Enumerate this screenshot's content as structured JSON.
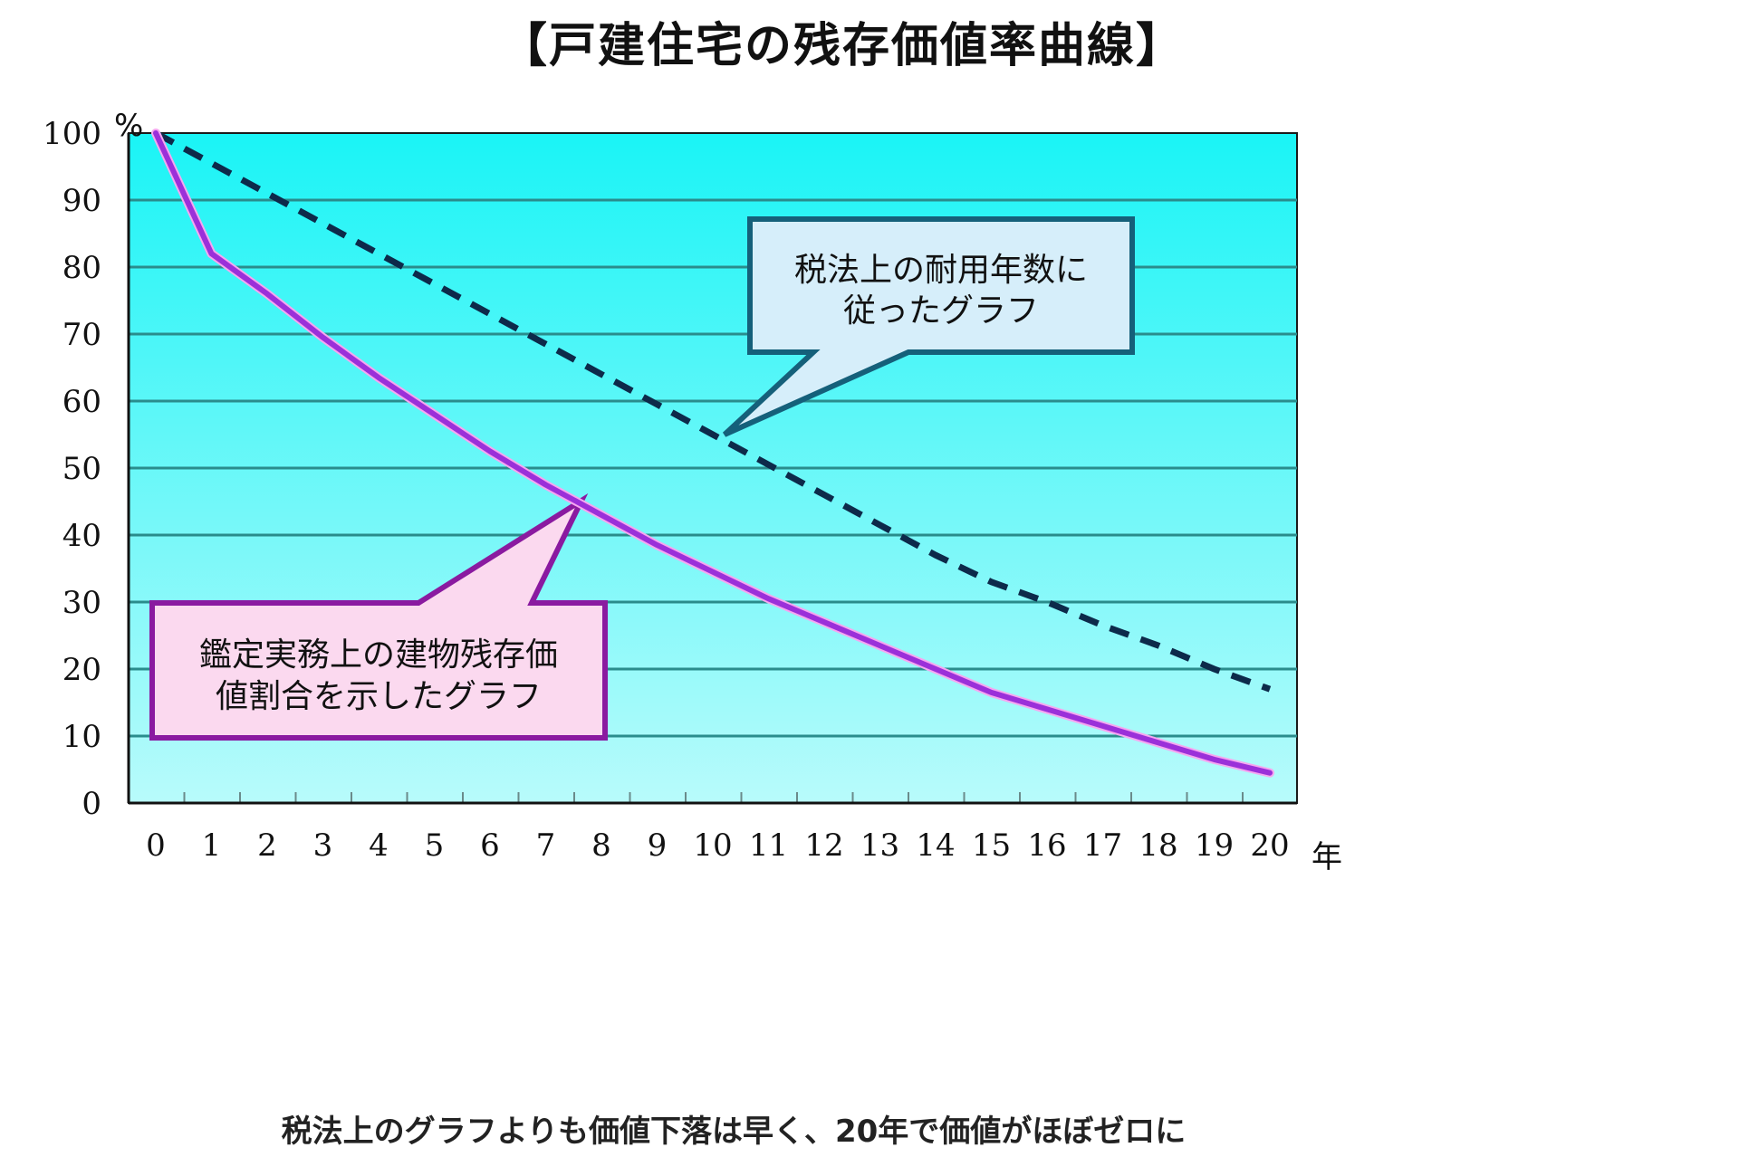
{
  "title": "【戸建住宅の残存価値率曲線】",
  "footnote": "税法上のグラフよりも価値下落は早く、20年で価値がほぼゼロに",
  "axes": {
    "y_unit": "%",
    "x_unit": "年",
    "y_ticks": [
      "0",
      "10",
      "20",
      "30",
      "40",
      "50",
      "60",
      "70",
      "80",
      "90",
      "100"
    ],
    "x_ticks": [
      "0",
      "1",
      "2",
      "3",
      "4",
      "5",
      "6",
      "7",
      "8",
      "9",
      "10",
      "11",
      "12",
      "13",
      "14",
      "15",
      "16",
      "17",
      "18",
      "19",
      "20"
    ]
  },
  "callouts": {
    "tax": {
      "line1": "税法上の耐用年数に",
      "line2": "従ったグラフ"
    },
    "appraisal": {
      "line1": "鑑定実務上の建物残存価",
      "line2": "値割合を示したグラフ"
    }
  },
  "colors": {
    "plot_top": "#1af4f6",
    "plot_bottom": "#b8fbfb",
    "gridline": "#2a8c8c",
    "tax_line": "#0d2a4a",
    "appraisal_line": "#9b30d9",
    "tax_callout_fill": "#d6eefa",
    "tax_callout_border": "#15607a",
    "appraisal_callout_fill": "#fbd9ef",
    "appraisal_callout_border": "#8a1aa0"
  },
  "chart_data": {
    "type": "line",
    "title": "【戸建住宅の残存価値率曲線】",
    "xlabel": "年",
    "ylabel": "%",
    "x": [
      0,
      1,
      2,
      3,
      4,
      5,
      6,
      7,
      8,
      9,
      10,
      11,
      12,
      13,
      14,
      15,
      16,
      17,
      18,
      19,
      20
    ],
    "ylim": [
      0,
      100
    ],
    "xlim": [
      0,
      20
    ],
    "grid": true,
    "series": [
      {
        "name": "税法上の耐用年数に従ったグラフ",
        "style": "dashed",
        "values": [
          100,
          95.5,
          91,
          86.5,
          82,
          77.5,
          73,
          68.5,
          64,
          59.5,
          55,
          50.5,
          46,
          41.5,
          37,
          33,
          30,
          26.5,
          23.5,
          20,
          17
        ]
      },
      {
        "name": "鑑定実務上の建物残存価値割合を示したグラフ",
        "style": "solid",
        "values": [
          100,
          82,
          76,
          69.5,
          63.5,
          58,
          52.5,
          47.5,
          43,
          38.5,
          34.5,
          30.5,
          27,
          23.5,
          20,
          16.5,
          14,
          11.5,
          9,
          6.5,
          4.5
        ]
      }
    ],
    "annotations": [
      "税法上の耐用年数に従ったグラフ",
      "鑑定実務上の建物残存価値割合を示したグラフ",
      "税法上のグラフよりも価値下落は早く、20年で価値がほぼゼロに"
    ]
  }
}
